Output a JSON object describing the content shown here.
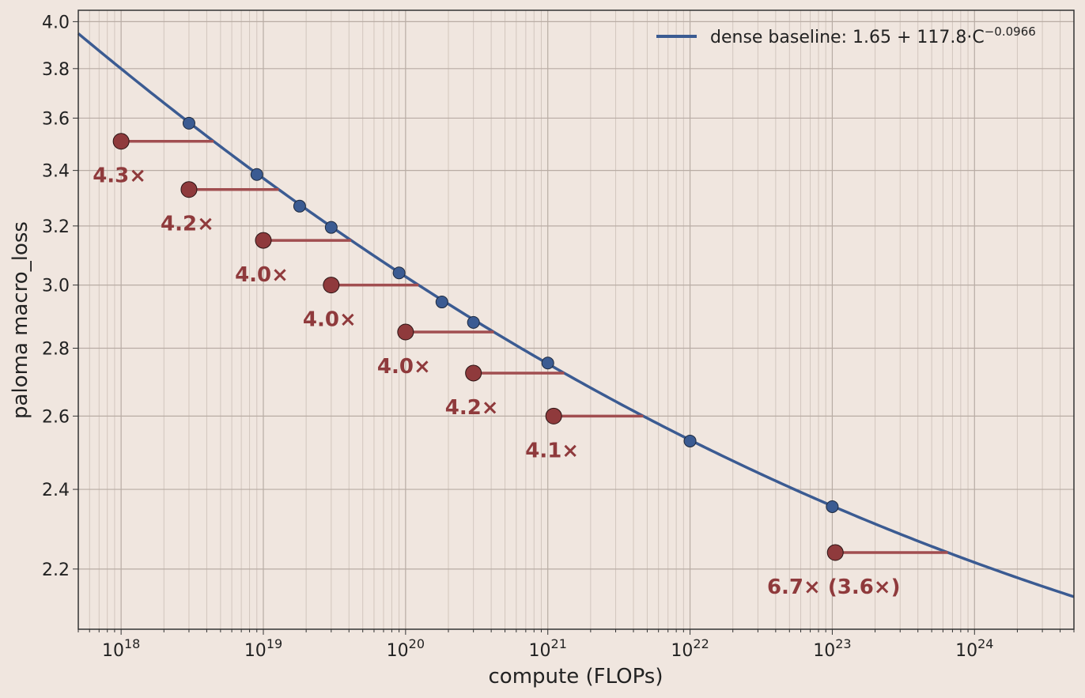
{
  "chart_data": {
    "type": "scatter",
    "xlabel": "compute (FLOPs)",
    "ylabel": "paloma macro_loss",
    "x_scale": "log",
    "y_scale": "log",
    "xlim": [
      5e+17,
      5e+24
    ],
    "ylim": [
      2.06,
      4.05
    ],
    "x_ticks": [
      {
        "exp": "18"
      },
      {
        "exp": "19"
      },
      {
        "exp": "20"
      },
      {
        "exp": "21"
      },
      {
        "exp": "22"
      },
      {
        "exp": "23"
      },
      {
        "exp": "24"
      }
    ],
    "x_tick_base": "10",
    "y_ticks": [
      "2.2",
      "2.4",
      "2.6",
      "2.8",
      "3.0",
      "3.2",
      "3.4",
      "3.6",
      "3.8",
      "4.0"
    ],
    "grid": true,
    "legend_position": "top-right",
    "legend": {
      "label_prefix": "dense baseline: 1.65 + 117.8·C",
      "label_exponent": "−0.0966"
    },
    "fit_curve": {
      "E": 1.65,
      "A": 117.8,
      "alpha": 0.0966
    },
    "colors": {
      "background": "#f0e6df",
      "dense": "#3b5b92",
      "highlight": "#8f3a3c",
      "highlight_line": "#a14e50"
    },
    "dense_points": [
      {
        "x": 3e+18,
        "y": 3.58
      },
      {
        "x": 9e+18,
        "y": 3.385
      },
      {
        "x": 1.8e+19,
        "y": 3.27
      },
      {
        "x": 3e+19,
        "y": 3.195
      },
      {
        "x": 9e+19,
        "y": 3.04
      },
      {
        "x": 1.8e+20,
        "y": 2.945
      },
      {
        "x": 3e+20,
        "y": 2.88
      },
      {
        "x": 1e+21,
        "y": 2.755
      },
      {
        "x": 1e+22,
        "y": 2.53
      },
      {
        "x": 1e+23,
        "y": 2.355
      }
    ],
    "efficient_points": [
      {
        "x": 1e+18,
        "y": 3.51,
        "label": "4.3×"
      },
      {
        "x": 3e+18,
        "y": 3.33,
        "label": "4.2×"
      },
      {
        "x": 1e+19,
        "y": 3.15,
        "label": "4.0×"
      },
      {
        "x": 3e+19,
        "y": 3.0,
        "label": "4.0×"
      },
      {
        "x": 1e+20,
        "y": 2.85,
        "label": "4.0×"
      },
      {
        "x": 3e+20,
        "y": 2.725,
        "label": "4.2×"
      },
      {
        "x": 1.1e+21,
        "y": 2.6,
        "label": "4.1×"
      },
      {
        "x": 1.05e+23,
        "y": 2.24,
        "label": "6.7× (3.6×)"
      }
    ]
  }
}
